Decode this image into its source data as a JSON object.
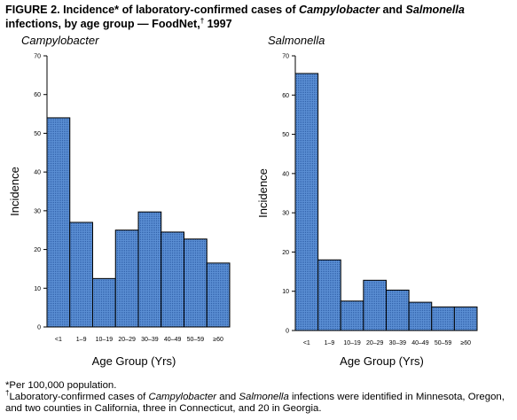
{
  "figure": {
    "title_parts": [
      {
        "text": "FIGURE 2. Incidence* of laboratory-confirmed cases of ",
        "italic": false
      },
      {
        "text": "Campylobacter",
        "italic": true
      },
      {
        "text": " and ",
        "italic": false
      },
      {
        "text": "Salmonella",
        "italic": true
      },
      {
        "text": " infections, by age group — FoodNet,",
        "italic": false
      },
      {
        "text": "†",
        "sup": true
      },
      {
        "text": " 1997",
        "italic": false
      }
    ],
    "footnote_1": "*Per 100,000 population.",
    "footnote_2_parts": [
      {
        "text": "†",
        "sup": true
      },
      {
        "text": "Laboratory-confirmed cases of ",
        "italic": false
      },
      {
        "text": "Campylobacter",
        "italic": true
      },
      {
        "text": " and ",
        "italic": false
      },
      {
        "text": "Salmonella",
        "italic": true
      },
      {
        "text": " infections were identified in Minnesota, Oregon, and two counties in California, three in Connecticut, and 20 in Georgia.",
        "italic": false
      }
    ]
  },
  "colors": {
    "bar_fill": "#5b8fd4",
    "bar_stroke": "#000000",
    "axis": "#000000"
  },
  "chart_data": [
    {
      "type": "bar",
      "title": "Campylobacter",
      "xlabel": "Age Group (Yrs)",
      "ylabel": "Incidence",
      "ylim": [
        0,
        70
      ],
      "yticks": [
        0,
        10,
        20,
        30,
        40,
        50,
        60,
        70
      ],
      "grid": false,
      "categories": [
        "<1",
        "1–9",
        "10–19",
        "20–29",
        "30–39",
        "40–49",
        "50–59",
        "≥60"
      ],
      "values": [
        54,
        27,
        12.5,
        25,
        29.7,
        24.5,
        22.7,
        16.5
      ]
    },
    {
      "type": "bar",
      "title": "Salmonella",
      "xlabel": "Age Group (Yrs)",
      "ylabel": "Incidence",
      "ylim": [
        0,
        70
      ],
      "yticks": [
        0,
        10,
        20,
        30,
        40,
        50,
        60,
        70
      ],
      "grid": false,
      "categories": [
        "<1",
        "1–9",
        "10–19",
        "20–29",
        "30–39",
        "40–49",
        "50–59",
        "≥60"
      ],
      "values": [
        65.5,
        18,
        7.5,
        12.8,
        10.3,
        7.2,
        6,
        6
      ]
    }
  ]
}
